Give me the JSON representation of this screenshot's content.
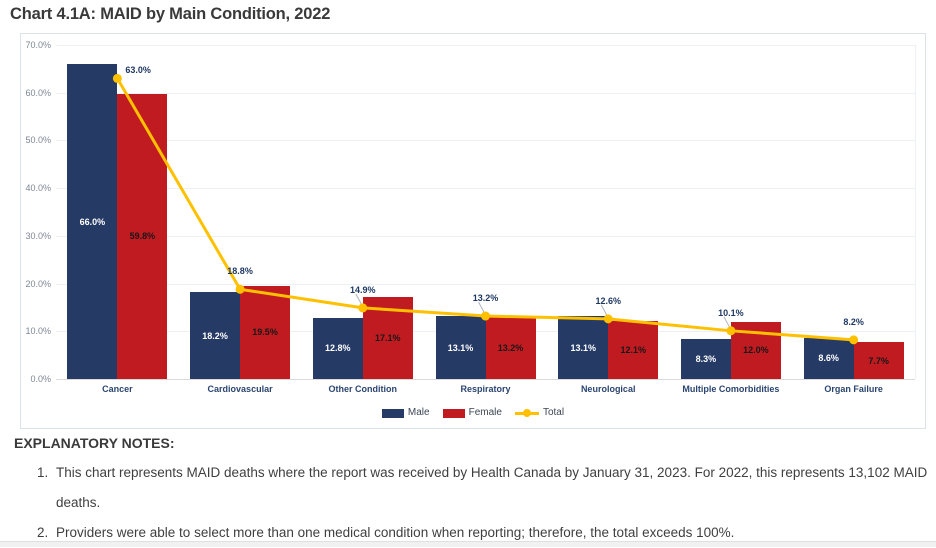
{
  "chart_data": {
    "type": "grouped-bar-with-line",
    "title": "Chart 4.1A: MAID by Main Condition, 2022",
    "categories": [
      "Cancer",
      "Cardiovascular",
      "Other Condition",
      "Respiratory",
      "Neurological",
      "Multiple Comorbidities",
      "Organ Failure"
    ],
    "series": [
      {
        "name": "Male",
        "type": "bar",
        "color": "#263A66",
        "label_color": "#FFFFFF",
        "values": [
          66.0,
          18.2,
          12.8,
          13.1,
          13.1,
          8.3,
          8.6
        ]
      },
      {
        "name": "Female",
        "type": "bar",
        "color": "#C11B22",
        "label_color": "#171717",
        "values": [
          59.8,
          19.5,
          17.1,
          13.2,
          12.1,
          12.0,
          7.7
        ]
      },
      {
        "name": "Total",
        "type": "line",
        "color": "#FFC000",
        "label_color": "#1F3864",
        "values": [
          63.0,
          18.8,
          14.9,
          13.2,
          12.6,
          10.1,
          8.2
        ]
      }
    ],
    "ylim": [
      0,
      70
    ],
    "y_ticks": [
      "0.0%",
      "10.0%",
      "20.0%",
      "30.0%",
      "40.0%",
      "50.0%",
      "60.0%",
      "70.0%"
    ],
    "grid": true,
    "legend_position": "bottom",
    "value_label_format": "0.0%",
    "leader_line_indices": [
      2,
      3,
      4,
      5
    ],
    "colors": {
      "grid": "#EDF0F5",
      "zero_axis": "#D9D9D9",
      "tick_text": "#7D8794",
      "leader": "#ADB3BD"
    }
  },
  "notes": {
    "heading": "EXPLANATORY NOTES:",
    "items": [
      "This chart represents MAID deaths where the report was received by Health Canada by January 31, 2023. For 2022, this represents 13,102 MAID deaths.",
      "Providers were able to select more than one medical condition when reporting; therefore, the total exceeds 100%."
    ]
  }
}
